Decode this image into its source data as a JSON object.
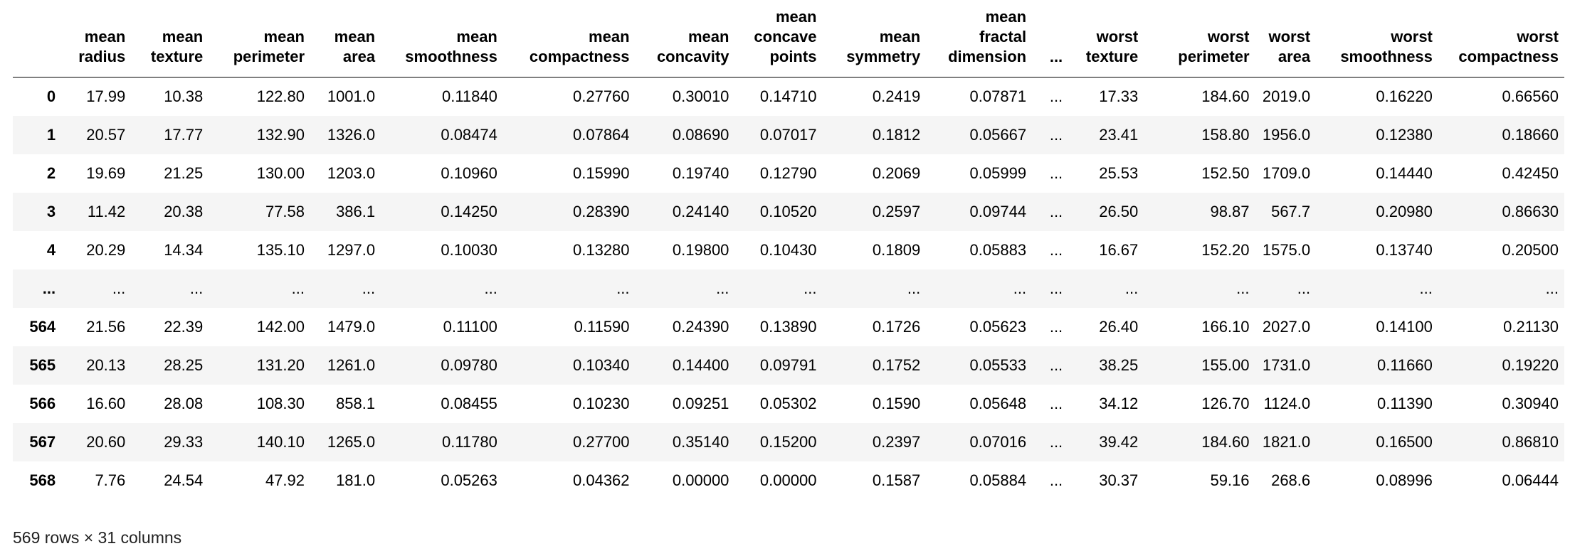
{
  "table": {
    "columns": [
      "mean radius",
      "mean texture",
      "mean perimeter",
      "mean area",
      "mean smoothness",
      "mean compactness",
      "mean concavity",
      "mean concave points",
      "mean symmetry",
      "mean fractal dimension",
      "...",
      "worst texture",
      "worst perimeter",
      "worst area",
      "worst smoothness",
      "worst compactness"
    ],
    "rows": [
      [
        "0",
        "17.99",
        "10.38",
        "122.80",
        "1001.0",
        "0.11840",
        "0.27760",
        "0.30010",
        "0.14710",
        "0.2419",
        "0.07871",
        "...",
        "17.33",
        "184.60",
        "2019.0",
        "0.16220",
        "0.66560"
      ],
      [
        "1",
        "20.57",
        "17.77",
        "132.90",
        "1326.0",
        "0.08474",
        "0.07864",
        "0.08690",
        "0.07017",
        "0.1812",
        "0.05667",
        "...",
        "23.41",
        "158.80",
        "1956.0",
        "0.12380",
        "0.18660"
      ],
      [
        "2",
        "19.69",
        "21.25",
        "130.00",
        "1203.0",
        "0.10960",
        "0.15990",
        "0.19740",
        "0.12790",
        "0.2069",
        "0.05999",
        "...",
        "25.53",
        "152.50",
        "1709.0",
        "0.14440",
        "0.42450"
      ],
      [
        "3",
        "11.42",
        "20.38",
        "77.58",
        "386.1",
        "0.14250",
        "0.28390",
        "0.24140",
        "0.10520",
        "0.2597",
        "0.09744",
        "...",
        "26.50",
        "98.87",
        "567.7",
        "0.20980",
        "0.86630"
      ],
      [
        "4",
        "20.29",
        "14.34",
        "135.10",
        "1297.0",
        "0.10030",
        "0.13280",
        "0.19800",
        "0.10430",
        "0.1809",
        "0.05883",
        "...",
        "16.67",
        "152.20",
        "1575.0",
        "0.13740",
        "0.20500"
      ],
      [
        "...",
        "...",
        "...",
        "...",
        "...",
        "...",
        "...",
        "...",
        "...",
        "...",
        "...",
        "...",
        "...",
        "...",
        "...",
        "...",
        "..."
      ],
      [
        "564",
        "21.56",
        "22.39",
        "142.00",
        "1479.0",
        "0.11100",
        "0.11590",
        "0.24390",
        "0.13890",
        "0.1726",
        "0.05623",
        "...",
        "26.40",
        "166.10",
        "2027.0",
        "0.14100",
        "0.21130"
      ],
      [
        "565",
        "20.13",
        "28.25",
        "131.20",
        "1261.0",
        "0.09780",
        "0.10340",
        "0.14400",
        "0.09791",
        "0.1752",
        "0.05533",
        "...",
        "38.25",
        "155.00",
        "1731.0",
        "0.11660",
        "0.19220"
      ],
      [
        "566",
        "16.60",
        "28.08",
        "108.30",
        "858.1",
        "0.08455",
        "0.10230",
        "0.09251",
        "0.05302",
        "0.1590",
        "0.05648",
        "...",
        "34.12",
        "126.70",
        "1124.0",
        "0.11390",
        "0.30940"
      ],
      [
        "567",
        "20.60",
        "29.33",
        "140.10",
        "1265.0",
        "0.11780",
        "0.27700",
        "0.35140",
        "0.15200",
        "0.2397",
        "0.07016",
        "...",
        "39.42",
        "184.60",
        "1821.0",
        "0.16500",
        "0.86810"
      ],
      [
        "568",
        "7.76",
        "24.54",
        "47.92",
        "181.0",
        "0.05263",
        "0.04362",
        "0.00000",
        "0.00000",
        "0.1587",
        "0.05884",
        "...",
        "30.37",
        "59.16",
        "268.6",
        "0.08996",
        "0.06444"
      ]
    ]
  },
  "footer": "569 rows × 31 columns"
}
